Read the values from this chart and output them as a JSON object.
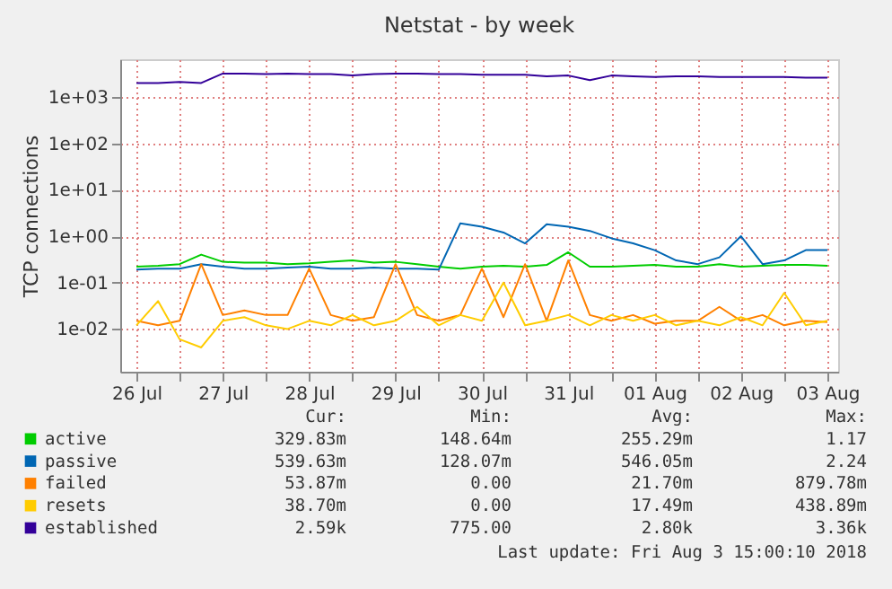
{
  "chart_data": {
    "type": "line",
    "title": "Netstat - by week",
    "ylabel": "TCP connections",
    "log": "y",
    "grid": true,
    "legend": "bottom",
    "x": [
      "2018-07-26T12:00",
      "2018-07-26T18:00",
      "2018-07-27T00:00",
      "2018-07-27T06:00",
      "2018-07-27T12:00",
      "2018-07-27T18:00",
      "2018-07-28T00:00",
      "2018-07-28T06:00",
      "2018-07-28T12:00",
      "2018-07-28T18:00",
      "2018-07-29T00:00",
      "2018-07-29T06:00",
      "2018-07-29T12:00",
      "2018-07-29T18:00",
      "2018-07-30T00:00",
      "2018-07-30T06:00",
      "2018-07-30T12:00",
      "2018-07-30T18:00",
      "2018-07-31T00:00",
      "2018-07-31T06:00",
      "2018-07-31T12:00",
      "2018-07-31T18:00",
      "2018-08-01T00:00",
      "2018-08-01T06:00",
      "2018-08-01T12:00",
      "2018-08-01T18:00",
      "2018-08-02T00:00",
      "2018-08-02T06:00",
      "2018-08-02T12:00",
      "2018-08-02T18:00",
      "2018-08-03T00:00",
      "2018-08-03T06:00",
      "2018-08-03T12:00"
    ],
    "xlim": [
      "2018-07-26T07:30",
      "2018-08-03T15:00"
    ],
    "xticks": [
      {
        "value": "2018-07-26T12:00",
        "label": "26 Jul"
      },
      {
        "value": "2018-07-27T00:00",
        "label": null
      },
      {
        "value": "2018-07-27T12:00",
        "label": "27 Jul"
      },
      {
        "value": "2018-07-28T00:00",
        "label": null
      },
      {
        "value": "2018-07-28T12:00",
        "label": "28 Jul"
      },
      {
        "value": "2018-07-29T00:00",
        "label": null
      },
      {
        "value": "2018-07-29T12:00",
        "label": "29 Jul"
      },
      {
        "value": "2018-07-30T00:00",
        "label": null
      },
      {
        "value": "2018-07-30T12:00",
        "label": "30 Jul"
      },
      {
        "value": "2018-07-31T00:00",
        "label": null
      },
      {
        "value": "2018-07-31T12:00",
        "label": "31 Jul"
      },
      {
        "value": "2018-08-01T00:00",
        "label": null
      },
      {
        "value": "2018-08-01T12:00",
        "label": "01 Aug"
      },
      {
        "value": "2018-08-02T00:00",
        "label": null
      },
      {
        "value": "2018-08-02T12:00",
        "label": "02 Aug"
      },
      {
        "value": "2018-08-03T00:00",
        "label": null
      },
      {
        "value": "2018-08-03T12:00",
        "label": "03 Aug"
      }
    ],
    "ylim": [
      0.0012,
      6500
    ],
    "yticks": [
      {
        "value": 0.01,
        "label": "1e-02"
      },
      {
        "value": 0.1,
        "label": "1e-01"
      },
      {
        "value": 1,
        "label": "1e+00"
      },
      {
        "value": 10,
        "label": "1e+01"
      },
      {
        "value": 100,
        "label": "1e+02"
      },
      {
        "value": 1000,
        "label": "1e+03"
      }
    ],
    "series": [
      {
        "name": "active",
        "color": "#00cc00",
        "values": [
          0.22,
          0.23,
          0.25,
          0.4,
          0.28,
          0.27,
          0.27,
          0.25,
          0.26,
          0.28,
          0.3,
          0.27,
          0.28,
          0.25,
          0.22,
          0.2,
          0.22,
          0.23,
          0.22,
          0.24,
          0.45,
          0.22,
          0.22,
          0.23,
          0.24,
          0.22,
          0.22,
          0.25,
          0.22,
          0.23,
          0.24,
          0.24,
          0.23
        ]
      },
      {
        "name": "passive",
        "color": "#0066b3",
        "values": [
          0.19,
          0.2,
          0.2,
          0.25,
          0.22,
          0.2,
          0.2,
          0.21,
          0.22,
          0.2,
          0.2,
          0.21,
          0.2,
          0.2,
          0.19,
          1.9,
          1.6,
          1.2,
          0.7,
          1.8,
          1.6,
          1.3,
          0.9,
          0.7,
          0.5,
          0.3,
          0.25,
          0.35,
          1.0,
          0.25,
          0.3,
          0.5,
          0.5
        ]
      },
      {
        "name": "failed",
        "color": "#ff8000",
        "values": [
          0.015,
          0.012,
          0.015,
          0.25,
          0.02,
          0.025,
          0.02,
          0.02,
          0.2,
          0.02,
          0.015,
          0.018,
          0.25,
          0.02,
          0.015,
          0.02,
          0.2,
          0.018,
          0.25,
          0.015,
          0.3,
          0.02,
          0.015,
          0.02,
          0.013,
          0.015,
          0.015,
          0.03,
          0.015,
          0.02,
          0.012,
          0.015,
          0.014
        ]
      },
      {
        "name": "resets",
        "color": "#ffcc00",
        "values": [
          0.012,
          0.04,
          0.006,
          0.004,
          0.015,
          0.018,
          0.012,
          0.01,
          0.015,
          0.012,
          0.02,
          0.012,
          0.015,
          0.03,
          0.012,
          0.02,
          0.015,
          0.1,
          0.012,
          0.015,
          0.02,
          0.012,
          0.02,
          0.015,
          0.02,
          0.012,
          0.015,
          0.012,
          0.018,
          0.012,
          0.06,
          0.012,
          0.015
        ]
      },
      {
        "name": "established",
        "color": "#330099",
        "values": [
          2000,
          2000,
          2100,
          2000,
          3200,
          3200,
          3100,
          3200,
          3100,
          3100,
          2900,
          3100,
          3200,
          3200,
          3100,
          3100,
          3000,
          3000,
          3000,
          2800,
          2900,
          2300,
          2900,
          2800,
          2700,
          2800,
          2800,
          2700,
          2700,
          2700,
          2700,
          2600,
          2600
        ]
      }
    ],
    "annotations": [
      "Cur:",
      "Min:",
      "Avg:",
      "Max:",
      "329.83m",
      "148.64m",
      "255.29m",
      "1.17",
      "539.63m",
      "128.07m",
      "546.05m",
      "2.24",
      "53.87m",
      "0.00",
      "21.70m",
      "879.78m",
      "38.70m",
      "0.00",
      "17.49m",
      "438.89m",
      "2.59k",
      "775.00",
      "2.80k",
      "3.36k",
      "Last update: Fri Aug  3 15:00:10 2018"
    ]
  }
}
